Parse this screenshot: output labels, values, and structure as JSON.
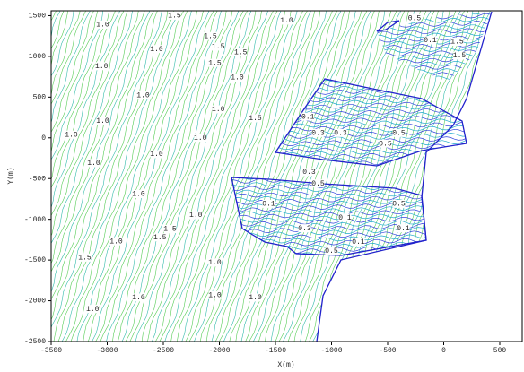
{
  "chart_data": {
    "type": "contour",
    "x_label": "X(m)",
    "y_label": "Y(m)",
    "xlim": [
      -3500,
      700
    ],
    "ylim": [
      -2500,
      1560
    ],
    "xticks": [
      -3500,
      -3000,
      -2500,
      -2000,
      -1500,
      -1000,
      -500,
      0,
      500
    ],
    "yticks": [
      -2500,
      -2000,
      -1500,
      -1000,
      -500,
      0,
      500,
      1000,
      1500
    ],
    "labels": {
      "x": [
        -3040,
        -2400,
        -2560,
        -2080,
        -2010,
        -1810,
        -2040,
        -3050,
        -1400,
        -1840,
        -2010,
        -1680,
        -3040,
        -3320,
        -2680,
        -2170,
        -2560,
        -3120,
        -2720,
        -2210,
        -2440,
        -2530,
        -2920,
        -3200,
        -2040,
        -2720,
        -2040,
        -1680,
        -3130,
        -260,
        -120,
        120,
        140,
        -1210,
        -1120,
        -920,
        -520,
        -400,
        -1200,
        -1120,
        -1560,
        -880,
        -1240,
        -760,
        -1000,
        -400,
        -360
      ],
      "y": [
        1390,
        1500,
        1090,
        1250,
        1120,
        1050,
        920,
        880,
        1440,
        740,
        350,
        240,
        210,
        40,
        520,
        0,
        -200,
        -310,
        -690,
        -950,
        -1120,
        -1220,
        -1270,
        -1470,
        -1530,
        -1960,
        -1930,
        -1960,
        -2100,
        1470,
        1200,
        1180,
        1010,
        260,
        60,
        60,
        -70,
        60,
        -420,
        -560,
        -810,
        -980,
        -1110,
        -1280,
        -1390,
        -810,
        -1110
      ],
      "levels": [
        1,
        1.5,
        1,
        1.5,
        1.5,
        1.5,
        1.5,
        1,
        1,
        1,
        1,
        1.5,
        1,
        1,
        1,
        1,
        1,
        1,
        1,
        1,
        1.5,
        1.5,
        1,
        1.5,
        1,
        1,
        1,
        1,
        1,
        0.5,
        0.1,
        1.5,
        1.5,
        0.1,
        0.3,
        0.3,
        0.5,
        0.5,
        0.3,
        0.5,
        0.1,
        0.1,
        0.3,
        0.1,
        0.5,
        0.5,
        0.1
      ],
      "value_labels": [
        "1.0",
        "1.5",
        "1.0",
        "1.5",
        "1.5",
        "1.5",
        "1.5",
        "1.0",
        "1.0",
        "1.0",
        "1.0",
        "1.5",
        "1.0",
        "1.0",
        "1.0",
        "1.0",
        "1.0",
        "1.0",
        "1.0",
        "1.0",
        "1.5",
        "1.5",
        "1.0",
        "1.5",
        "1.0",
        "1.0",
        "1.0",
        "1.0",
        "1.0",
        "0.5",
        "0.1",
        "1.5",
        "1.5",
        "0.1",
        "0.3",
        "0.3",
        "0.5",
        "0.5",
        "0.3",
        "0.5",
        "0.1",
        "0.1",
        "0.3",
        "0.1",
        "0.5",
        "0.5",
        "0.1"
      ]
    }
  }
}
